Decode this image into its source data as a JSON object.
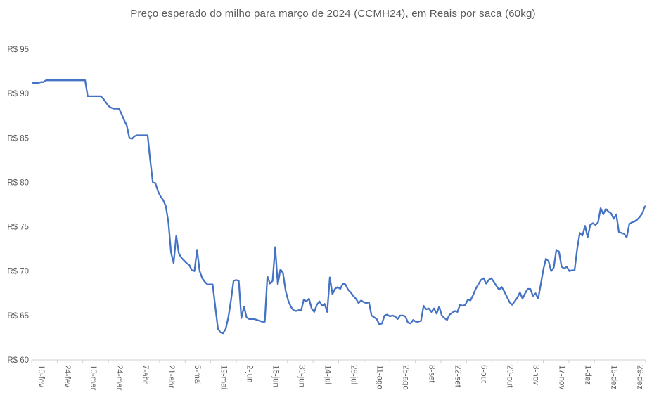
{
  "chart_data": {
    "type": "line",
    "title": "Preço esperado do milho para março de 2024 (CCMH24), em Reais por saca (60kg)",
    "xlabel": "",
    "ylabel": "",
    "ylim": [
      60,
      95
    ],
    "grid": false,
    "legend": "none",
    "y_tick_labels": [
      "R$ 95",
      "R$ 90",
      "R$ 85",
      "R$ 80",
      "R$ 75",
      "R$ 70",
      "R$ 65",
      "R$ 60"
    ],
    "y_tick_values": [
      95,
      90,
      85,
      80,
      75,
      70,
      65,
      60
    ],
    "x_tick_labels": [
      "10-fev",
      "24-fev",
      "10-mar",
      "24-mar",
      "7-abr",
      "21-abr",
      "5-mai",
      "19-mai",
      "2-jun",
      "16-jun",
      "30-jun",
      "14-jul",
      "28-jul",
      "11-ago",
      "25-ago",
      "8-set",
      "22-set",
      "6-out",
      "20-out",
      "3-nov",
      "17-nov",
      "1-dez",
      "15-dez",
      "29-dez"
    ],
    "x_label_point_offset": 3,
    "x_label_point_step": 10,
    "series": [
      {
        "name": "Preço esperado CCMH24 (R$/saca 60kg)",
        "color": "#4472C4",
        "values": [
          91.2,
          91.2,
          91.2,
          91.3,
          91.3,
          91.5,
          91.5,
          91.5,
          91.5,
          91.5,
          91.5,
          91.5,
          91.5,
          91.5,
          91.5,
          91.5,
          91.5,
          91.5,
          91.5,
          91.5,
          91.5,
          89.7,
          89.7,
          89.7,
          89.7,
          89.7,
          89.7,
          89.4,
          89.0,
          88.6,
          88.4,
          88.3,
          88.3,
          88.3,
          87.7,
          87.0,
          86.4,
          85.0,
          84.9,
          85.2,
          85.3,
          85.3,
          85.3,
          85.3,
          85.3,
          82.5,
          80.0,
          79.9,
          79.0,
          78.4,
          78.0,
          77.3,
          75.5,
          72.1,
          70.9,
          74.0,
          72.0,
          71.5,
          71.2,
          70.9,
          70.7,
          70.1,
          70.0,
          72.4,
          70.0,
          69.2,
          68.8,
          68.5,
          68.5,
          68.5,
          66.0,
          63.5,
          63.1,
          63.0,
          63.5,
          64.8,
          66.7,
          68.9,
          69.0,
          68.9,
          64.7,
          66.0,
          64.8,
          64.6,
          64.6,
          64.6,
          64.5,
          64.4,
          64.3,
          64.3,
          69.4,
          68.6,
          68.9,
          72.7,
          68.5,
          70.2,
          69.8,
          67.8,
          66.7,
          66.0,
          65.6,
          65.5,
          65.6,
          65.6,
          66.8,
          66.6,
          66.9,
          65.8,
          65.4,
          66.2,
          66.6,
          66.1,
          66.3,
          65.4,
          69.3,
          67.4,
          68.0,
          68.2,
          68.0,
          68.6,
          68.5,
          67.9,
          67.6,
          67.2,
          66.9,
          66.4,
          66.7,
          66.5,
          66.4,
          66.5,
          65.0,
          64.8,
          64.6,
          64.0,
          64.1,
          65.0,
          65.1,
          64.9,
          65.0,
          64.9,
          64.6,
          65.0,
          65.0,
          64.9,
          64.2,
          64.1,
          64.5,
          64.3,
          64.3,
          64.4,
          66.1,
          65.7,
          65.8,
          65.4,
          65.8,
          65.2,
          66.0,
          65.0,
          64.7,
          64.5,
          65.1,
          65.3,
          65.5,
          65.4,
          66.2,
          66.1,
          66.2,
          66.8,
          66.7,
          67.3,
          68.0,
          68.5,
          69.0,
          69.2,
          68.6,
          69.0,
          69.2,
          68.8,
          68.3,
          67.9,
          68.2,
          67.7,
          67.1,
          66.5,
          66.2,
          66.6,
          67.0,
          67.6,
          66.9,
          67.5,
          68.0,
          68.0,
          67.2,
          67.5,
          66.9,
          68.5,
          70.2,
          71.4,
          71.1,
          70.0,
          70.4,
          72.4,
          72.2,
          70.5,
          70.3,
          70.5,
          70.0,
          70.1,
          70.1,
          72.5,
          74.3,
          74.0,
          75.1,
          73.8,
          75.2,
          75.4,
          75.2,
          75.5,
          77.1,
          76.4,
          77.0,
          76.7,
          76.5,
          75.9,
          76.4,
          74.4,
          74.3,
          74.2,
          73.8,
          75.3,
          75.5,
          75.6,
          75.8,
          76.1,
          76.5,
          77.3
        ]
      }
    ],
    "colors": {
      "line": "#4472C4",
      "axis": "#d0d0d0",
      "text": "#595959",
      "background": "#ffffff"
    }
  }
}
